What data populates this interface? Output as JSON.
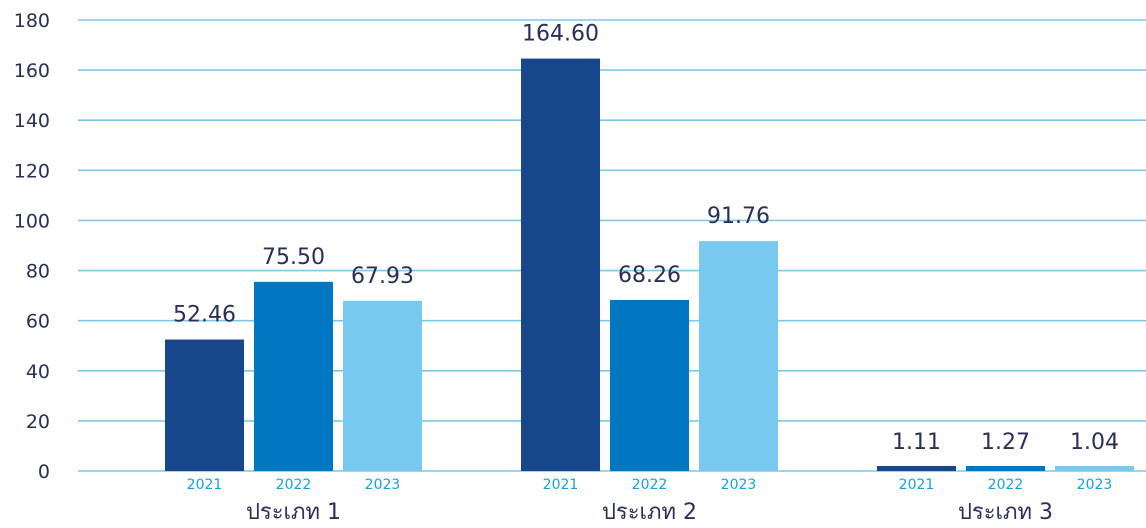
{
  "chart_data": {
    "type": "bar",
    "categories": [
      "ประเภท 1",
      "ประเภท 2",
      "ประเภท 3"
    ],
    "series": [
      {
        "name": "2021",
        "values": [
          52.46,
          164.6,
          1.11
        ],
        "color": "#17468a",
        "value_labels": [
          "52.46",
          "164.60",
          "1.11"
        ]
      },
      {
        "name": "2022",
        "values": [
          75.5,
          68.26,
          1.27
        ],
        "color": "#0077c0",
        "value_labels": [
          "75.50",
          "68.26",
          "1.27"
        ]
      },
      {
        "name": "2023",
        "values": [
          67.93,
          91.76,
          1.04
        ],
        "color": "#78c8f0",
        "value_labels": [
          "67.93",
          "91.76",
          "1.04"
        ]
      }
    ],
    "yticks": [
      "0",
      "20",
      "40",
      "60",
      "80",
      "100",
      "120",
      "140",
      "160",
      "180"
    ],
    "ylim": [
      0,
      180
    ],
    "grid": true,
    "grid_color": "#7cc8e6",
    "legend": "none",
    "title": "",
    "xlabel": "",
    "ylabel": ""
  }
}
